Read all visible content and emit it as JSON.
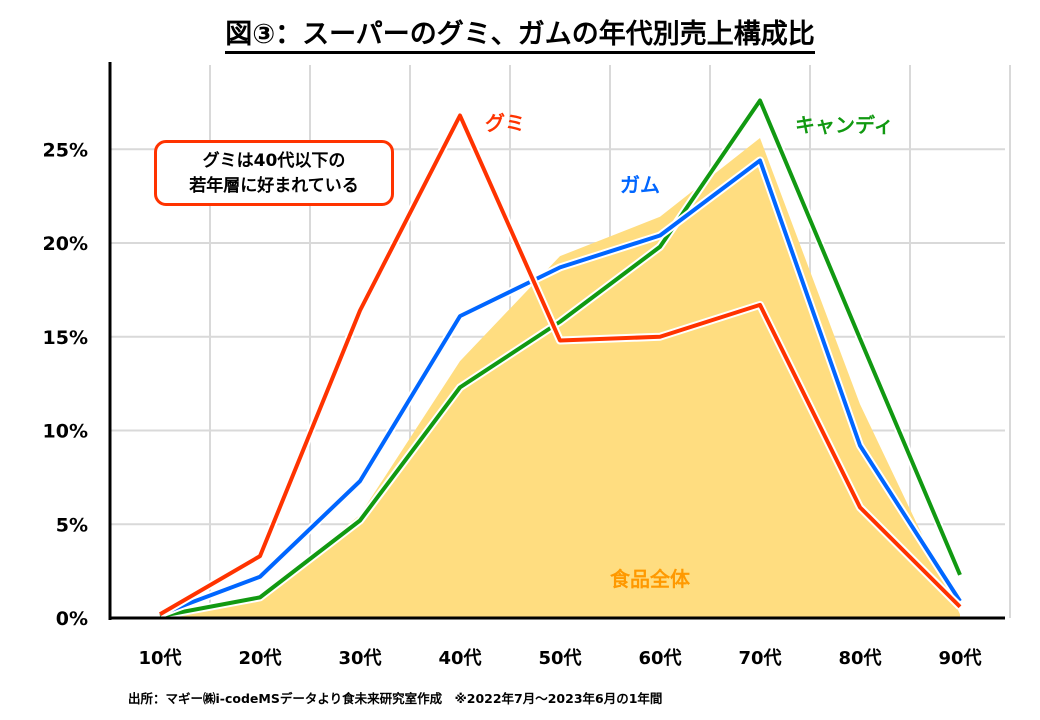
{
  "chart_data": {
    "type": "line",
    "title": "図③：スーパーのグミ、ガムの年代別売上構成比",
    "categories": [
      "10代",
      "20代",
      "30代",
      "40代",
      "50代",
      "60代",
      "70代",
      "80代",
      "90代"
    ],
    "ylim": [
      0,
      28
    ],
    "yticks": [
      0,
      5,
      10,
      15,
      20,
      25
    ],
    "ytick_labels": [
      "0%",
      "5%",
      "10%",
      "15%",
      "20%",
      "25%"
    ],
    "grid": true,
    "series": [
      {
        "name": "食品全体",
        "type": "area",
        "color": "#ffdd80",
        "values": [
          0,
          1.2,
          5.5,
          13.7,
          19.3,
          21.4,
          25.6,
          11.4,
          0.2
        ]
      },
      {
        "name": "キャンディ",
        "type": "line",
        "color": "#119911",
        "values": [
          0.1,
          1.1,
          5.2,
          12.3,
          15.8,
          19.8,
          27.6,
          14.9,
          2.3
        ]
      },
      {
        "name": "ガム",
        "type": "line",
        "color": "#0066ff",
        "values": [
          0.2,
          2.2,
          7.3,
          16.1,
          18.7,
          20.4,
          24.4,
          9.2,
          0.9
        ]
      },
      {
        "name": "グミ",
        "type": "line",
        "color": "#ff3300",
        "values": [
          0.2,
          3.3,
          16.4,
          26.8,
          14.8,
          15.0,
          16.7,
          5.9,
          0.6
        ]
      }
    ],
    "annotation": [
      "グミは40代以下の",
      "若年層に好まれている"
    ],
    "source": "出所：マギー㈱i-codeMSデータより食未来研究室作成　※2022年7月～2023年6月の1年間"
  }
}
